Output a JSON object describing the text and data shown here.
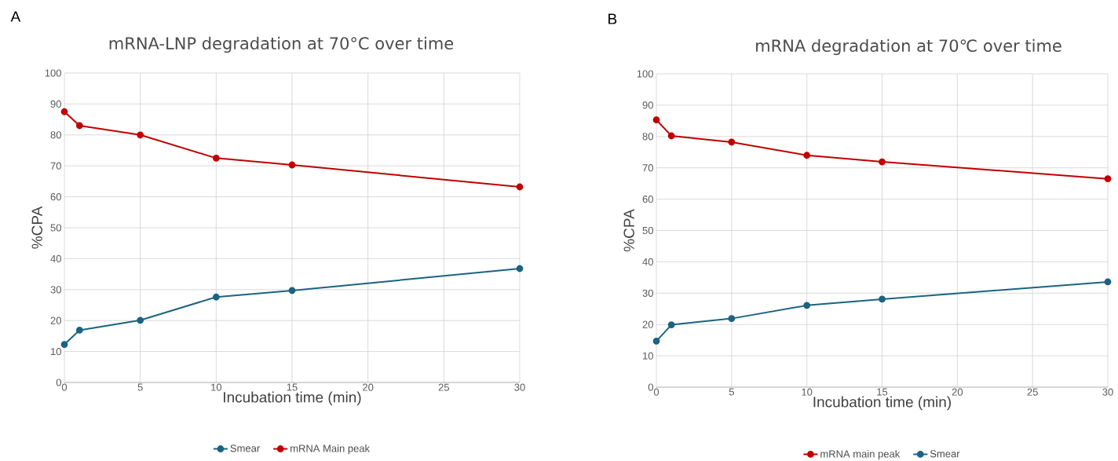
{
  "chart_data": [
    {
      "type": "line",
      "title": "mRNA-LNP degradation at 70°C over time",
      "xlabel": "Incubation time (min)",
      "ylabel": "%CPA",
      "annotations": [
        "A"
      ],
      "x": [
        0,
        1,
        5,
        10,
        15,
        30
      ],
      "series": [
        {
          "name": "Smear",
          "color": "#1b6382",
          "values": [
            12.3,
            16.9,
            20.1,
            27.6,
            29.7,
            36.8
          ]
        },
        {
          "name": "mRNA Main peak",
          "color": "#c00000",
          "values": [
            87.5,
            83.0,
            80.0,
            72.5,
            70.3,
            63.2
          ]
        }
      ],
      "xlim": [
        0,
        30
      ],
      "xticks": [
        0,
        5,
        10,
        15,
        20,
        25,
        30
      ],
      "ylim": [
        0,
        100
      ],
      "yticks": [
        0,
        10,
        20,
        30,
        40,
        50,
        60,
        70,
        80,
        90,
        100
      ],
      "grid": true,
      "legend": "bottom",
      "marker": "circle",
      "line_style": "solid"
    },
    {
      "type": "line",
      "title": "mRNA degradation at 70℃ over time",
      "xlabel": "Incubation time (min)",
      "ylabel": "%CPA",
      "annotations": [
        "B"
      ],
      "x": [
        0,
        1,
        5,
        10,
        15,
        30
      ],
      "series": [
        {
          "name": "mRNA main peak",
          "color": "#c00000",
          "values": [
            85.3,
            80.2,
            78.2,
            74.0,
            71.9,
            66.5
          ]
        },
        {
          "name": "Smear",
          "color": "#1b6382",
          "values": [
            14.7,
            19.9,
            21.9,
            26.1,
            28.1,
            33.6
          ]
        }
      ],
      "xlim": [
        0,
        30
      ],
      "xticks": [
        0,
        5,
        10,
        15,
        20,
        25,
        30
      ],
      "ylim": [
        0,
        100
      ],
      "yticks": [
        0,
        10,
        20,
        30,
        40,
        50,
        60,
        70,
        80,
        90,
        100
      ],
      "grid": true,
      "legend": "bottom",
      "marker": "circle",
      "line_style": "solid"
    }
  ]
}
